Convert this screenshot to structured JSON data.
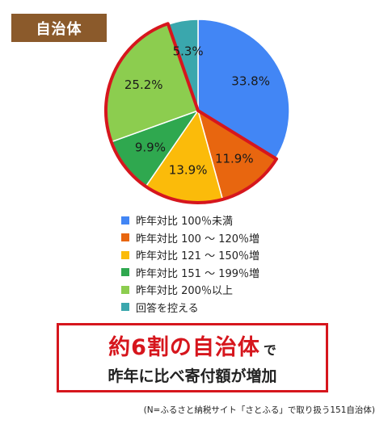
{
  "badge": "自治体",
  "chart_data": {
    "type": "pie",
    "title": "",
    "slices": [
      {
        "label": "昨年対比 100％未満",
        "value": 33.8,
        "display": "33.8%",
        "color": "#4286f5"
      },
      {
        "label": "昨年対比 100 ～ 120％増",
        "value": 11.9,
        "display": "11.9%",
        "color": "#e8660f"
      },
      {
        "label": "昨年対比 121 ～ 150％増",
        "value": 13.9,
        "display": "13.9%",
        "color": "#fbbb0a"
      },
      {
        "label": "昨年対比 151 ～ 199％増",
        "value": 9.9,
        "display": "9.9%",
        "color": "#2fa84f"
      },
      {
        "label": "昨年対比 200％以上",
        "value": 25.2,
        "display": "25.2%",
        "color": "#8ccd4f"
      },
      {
        "label": "回答を控える",
        "value": 5.3,
        "display": "5.3%",
        "color": "#3aa7ad"
      }
    ],
    "highlight_color": "#d6161d",
    "highlighted_slices": [
      1,
      2,
      3,
      4
    ]
  },
  "callout": {
    "main": "約6割の自治体",
    "suffix": "で",
    "line2": "昨年に比べ寄付額が増加"
  },
  "footnote": "(N=ふるさと納税サイト「さとふる」で取り扱う151自治体)"
}
